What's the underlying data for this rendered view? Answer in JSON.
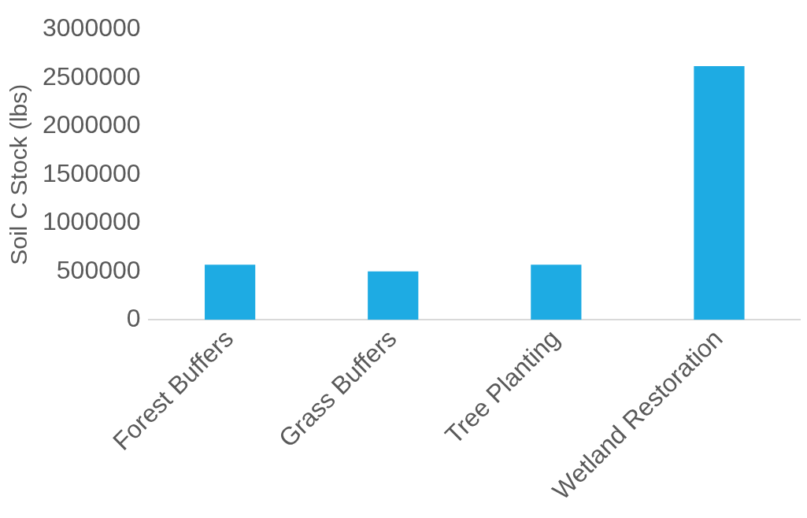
{
  "chart_data": {
    "type": "bar",
    "ylabel": "Soil C Stock (lbs)",
    "categories": [
      "Forest Buffers",
      "Grass Buffers",
      "Tree Planting",
      "Wetland Restoration"
    ],
    "values": [
      570000,
      500000,
      570000,
      2620000
    ],
    "color": "#1eabe3",
    "ylim": [
      0,
      3000000
    ],
    "yticks": [
      0,
      500000,
      1000000,
      1500000,
      2000000,
      2500000,
      3000000
    ],
    "grid": false,
    "legend": false
  }
}
